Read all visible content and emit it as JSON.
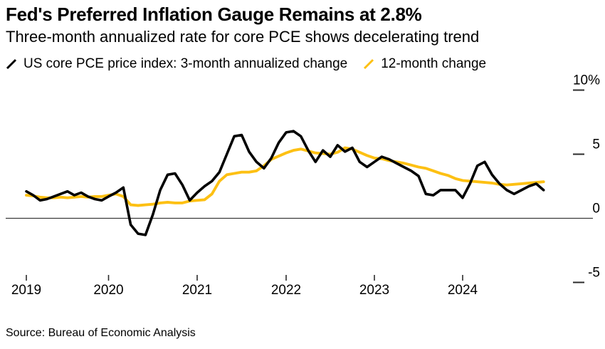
{
  "header": {
    "title": "Fed's Preferred Inflation Gauge Remains at 2.8%",
    "subtitle": "Three-month annualized rate for core PCE shows decelerating trend"
  },
  "legend": {
    "items": [
      {
        "label": "US core PCE price index: 3-month annualized change",
        "color": "#000000",
        "icon": "slash-icon"
      },
      {
        "label": "12-month change",
        "color": "#FDC013",
        "icon": "slash-icon"
      }
    ]
  },
  "source": "Source: Bureau of Economic Analysis",
  "colors": {
    "series_3m": "#000000",
    "series_12m": "#FDC013",
    "axis": "#2b2b2b",
    "zero_line": "#3c3c3c",
    "background": "#ffffff"
  },
  "chart_data": {
    "type": "line",
    "title": "Fed's Preferred Inflation Gauge Remains at 2.8%",
    "subtitle": "Three-month annualized rate for core PCE shows decelerating trend",
    "unit": "percent",
    "x_start_month": "2019-01",
    "x_end_month": "2024-12",
    "months_per_point": 1,
    "x_tick_labels": [
      "2019",
      "2020",
      "2021",
      "2022",
      "2023",
      "2024"
    ],
    "y_ticks": [
      {
        "value": 10,
        "label": "10%"
      },
      {
        "value": 5,
        "label": "5"
      },
      {
        "value": 0,
        "label": "0"
      },
      {
        "value": -5,
        "label": "-5"
      }
    ],
    "ylim": [
      -7,
      11.5
    ],
    "grid": false,
    "zero_line": true,
    "legend_position": "top-left",
    "series": [
      {
        "name": "US core PCE price index: 3-month annualized change",
        "color": "#000000",
        "values": [
          2.1,
          1.8,
          1.4,
          1.5,
          1.7,
          1.9,
          2.1,
          1.8,
          2.0,
          1.7,
          1.5,
          1.4,
          1.7,
          2.0,
          2.4,
          -0.5,
          -1.2,
          -1.3,
          0.3,
          2.2,
          3.4,
          3.5,
          2.6,
          1.4,
          2.0,
          2.5,
          2.9,
          3.6,
          5.0,
          6.4,
          6.5,
          5.2,
          4.4,
          3.9,
          4.7,
          5.9,
          6.7,
          6.8,
          6.4,
          5.3,
          4.4,
          5.3,
          4.8,
          5.7,
          5.2,
          5.5,
          4.4,
          4.0,
          4.4,
          4.8,
          4.6,
          4.3,
          4.0,
          3.7,
          3.3,
          1.9,
          1.8,
          2.2,
          2.2,
          2.2,
          1.6,
          2.7,
          4.1,
          4.4,
          3.4,
          2.7,
          2.2,
          1.9,
          2.2,
          2.5,
          2.7,
          2.2
        ]
      },
      {
        "name": "12-month change",
        "color": "#FDC013",
        "values": [
          1.8,
          1.75,
          1.65,
          1.6,
          1.6,
          1.65,
          1.6,
          1.65,
          1.7,
          1.65,
          1.7,
          1.7,
          1.8,
          1.9,
          1.7,
          1.05,
          1.0,
          1.05,
          1.1,
          1.2,
          1.25,
          1.2,
          1.2,
          1.35,
          1.4,
          1.45,
          1.9,
          2.9,
          3.4,
          3.5,
          3.6,
          3.6,
          3.7,
          4.1,
          4.6,
          4.85,
          5.1,
          5.3,
          5.4,
          5.25,
          5.1,
          5.05,
          5.0,
          5.15,
          5.5,
          5.4,
          5.15,
          4.9,
          4.7,
          4.65,
          4.5,
          4.4,
          4.3,
          4.15,
          4.0,
          3.9,
          3.7,
          3.5,
          3.35,
          3.1,
          2.95,
          2.9,
          2.85,
          2.8,
          2.75,
          2.65,
          2.6,
          2.65,
          2.7,
          2.75,
          2.8,
          2.85
        ]
      }
    ]
  }
}
